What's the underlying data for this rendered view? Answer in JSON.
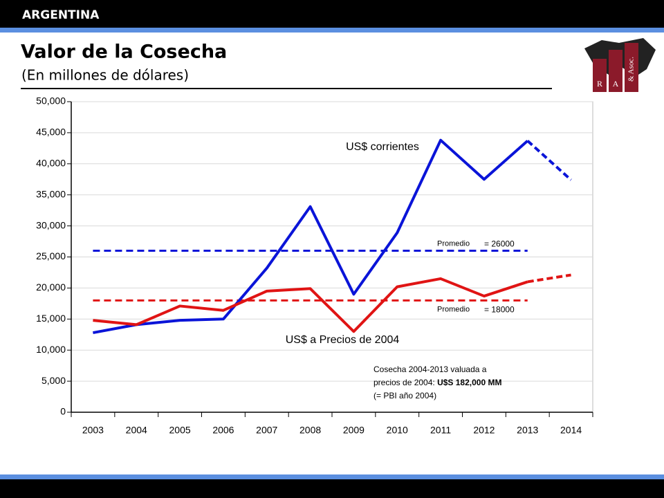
{
  "header": {
    "country": "ARGENTINA",
    "title": "Valor de la Cosecha",
    "subtitle": "(En millones de dólares)"
  },
  "logo": {
    "letters": [
      "R",
      "A",
      "& Asoc."
    ]
  },
  "chart_data": {
    "type": "line",
    "categories": [
      "2003",
      "2004",
      "2005",
      "2006",
      "2007",
      "2008",
      "2009",
      "2010",
      "2011",
      "2012",
      "2013",
      "2014"
    ],
    "series": [
      {
        "name": "US$ corrientes",
        "color": "#0a14d8",
        "dashed_last_segment": true,
        "values": [
          12800,
          14100,
          14800,
          15000,
          23200,
          33100,
          19000,
          28900,
          43800,
          37500,
          43700,
          37400
        ]
      },
      {
        "name": "US$ a Precios de 2004",
        "color": "#e01414",
        "dashed_last_segment": true,
        "values": [
          14800,
          14100,
          17100,
          16400,
          19500,
          19900,
          13000,
          20200,
          21500,
          18700,
          21000,
          22100
        ]
      }
    ],
    "reference_lines": [
      {
        "label": "Promedio",
        "value": 26000,
        "value_label": "= 26000",
        "color": "#0a14d8"
      },
      {
        "label": "Promedio",
        "value": 18000,
        "value_label": "= 18000",
        "color": "#e01414"
      }
    ],
    "note": {
      "lines": [
        "Cosecha 2004-2013 valuada a",
        "precios de 2004: ",
        "(= PBI año 2004)"
      ],
      "emphasis": "U$S 182,000 MM"
    },
    "ylim": [
      0,
      50000
    ],
    "yticks": [
      0,
      {
        "value": 5000,
        "label": "5,000"
      },
      {
        "value": 10000,
        "label": "10,000"
      },
      {
        "value": 15000,
        "label": "15,000"
      },
      {
        "value": 20000,
        "label": "20,000"
      },
      {
        "value": 25000,
        "label": "25,000"
      },
      {
        "value": 30000,
        "label": "30,000"
      },
      {
        "value": 35000,
        "label": "35,000"
      },
      {
        "value": 40000,
        "label": "40,000"
      },
      {
        "value": 45000,
        "label": "45,000"
      },
      {
        "value": 50000,
        "label": "50,000"
      }
    ],
    "grid": true
  }
}
